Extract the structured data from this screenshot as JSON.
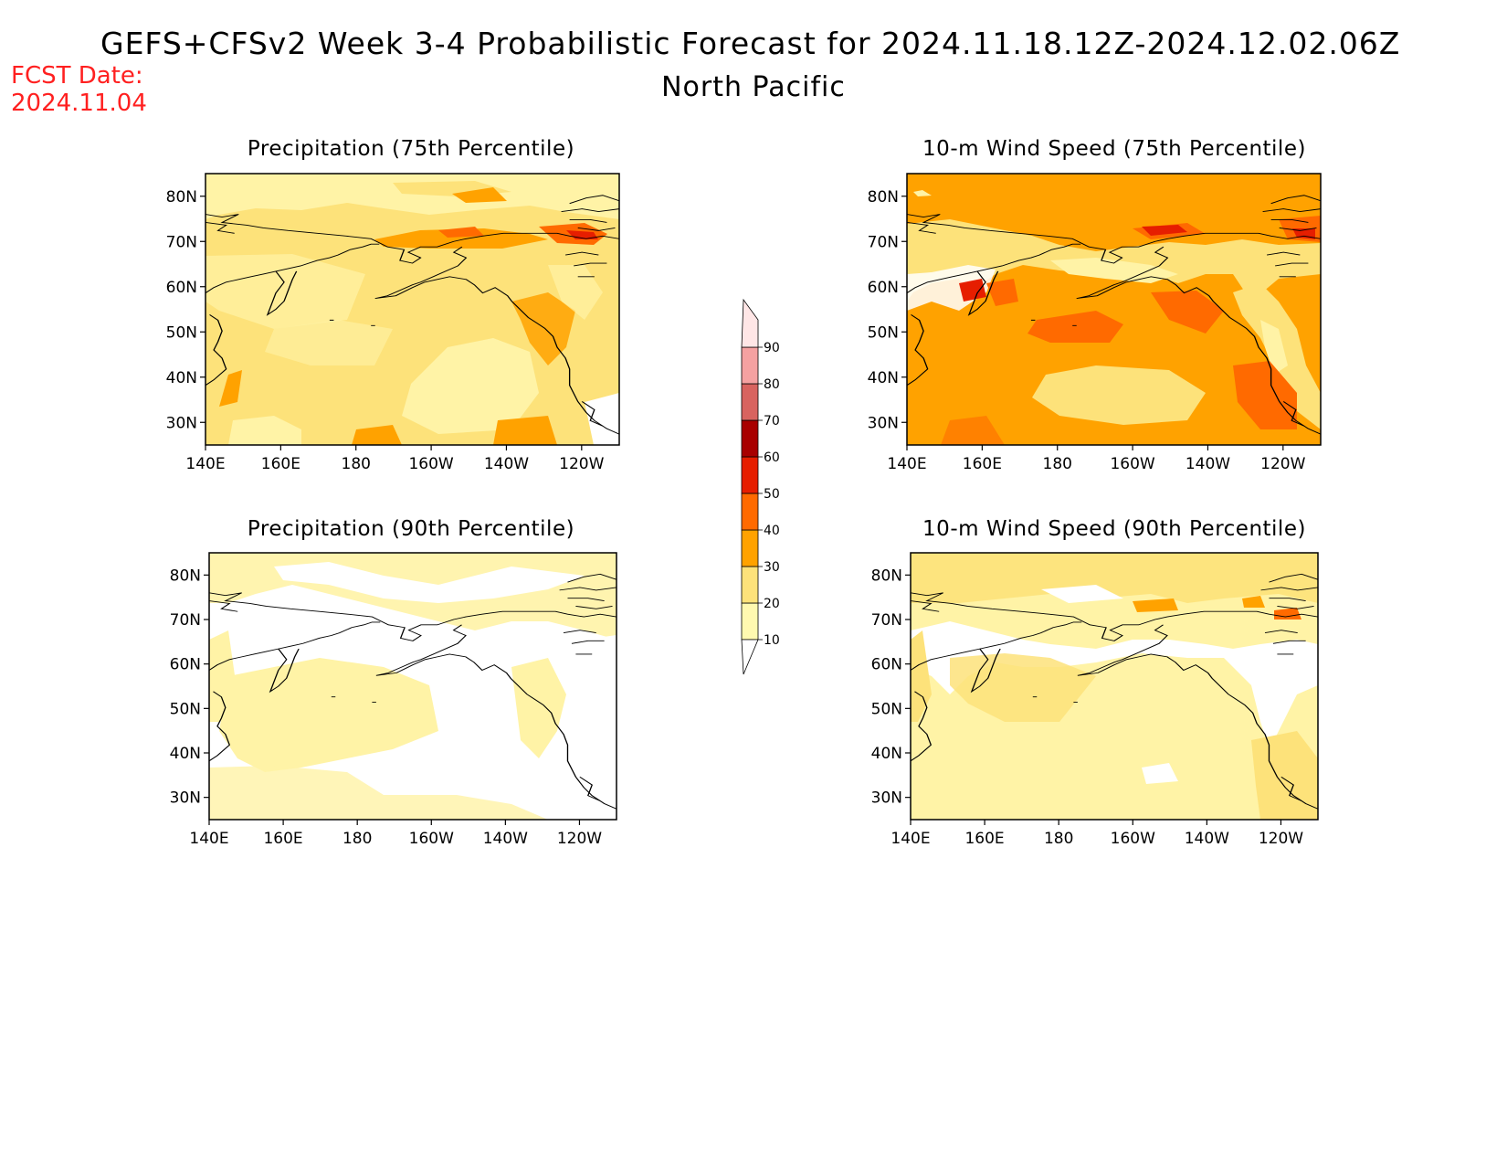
{
  "header": {
    "title": "GEFS+CFSv2 Week 3-4 Probabilistic Forecast for 2024.11.18.12Z-2024.12.02.06Z",
    "subtitle": "North Pacific",
    "fcst_label": "FCST Date:",
    "fcst_date": "2024.11.04"
  },
  "panels": [
    {
      "title": "Precipitation (75th Percentile)"
    },
    {
      "title": "10-m Wind Speed (75th Percentile)"
    },
    {
      "title": "Precipitation (90th Percentile)"
    },
    {
      "title": "10-m Wind Speed (90th Percentile)"
    }
  ],
  "axes": {
    "x_ticks": [
      "140E",
      "160E",
      "180",
      "160W",
      "140W",
      "120W"
    ],
    "y_ticks": [
      "80N",
      "70N",
      "60N",
      "50N",
      "40N",
      "30N"
    ]
  },
  "colorbar": {
    "levels": [
      "10",
      "20",
      "30",
      "40",
      "50",
      "60",
      "70",
      "80",
      "90"
    ],
    "colors": [
      "#fff9b0",
      "#fde27a",
      "#ffa200",
      "#ff6a00",
      "#e61e00",
      "#a80000",
      "#d8635f",
      "#f5a1a1",
      "#ffe6e6"
    ]
  }
}
